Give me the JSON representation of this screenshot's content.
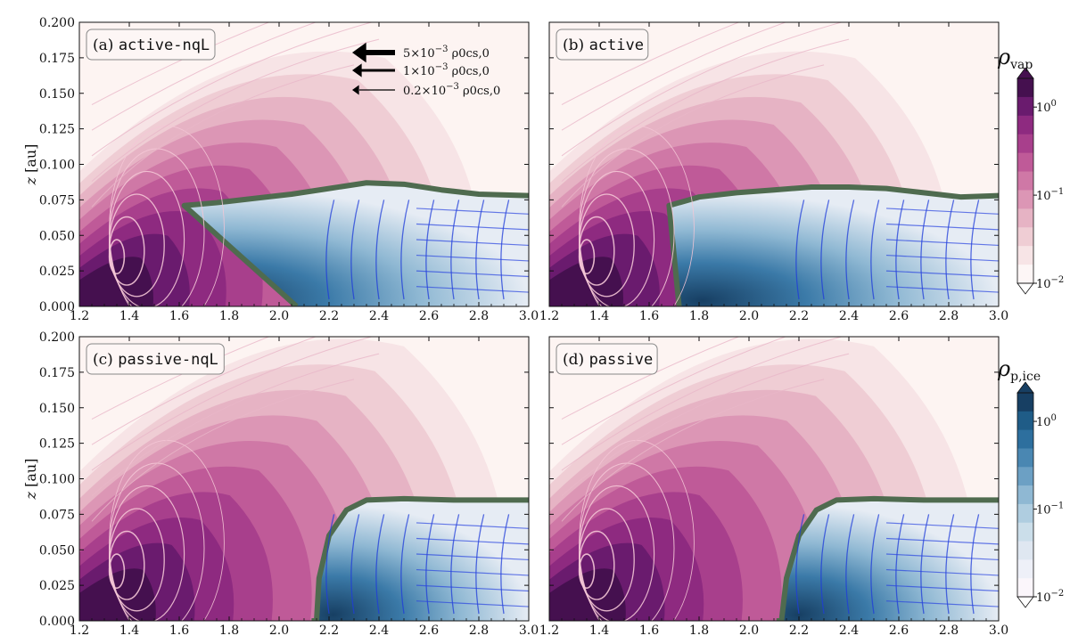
{
  "chart_data": [
    {
      "type": "heatmap",
      "panel": "a",
      "tag_letter": "(a)",
      "tag_name": "active-nqL",
      "xlim": [
        1.2,
        3.0
      ],
      "ylim": [
        0.0,
        0.2
      ],
      "ylabel": "z [au]",
      "xticks": [
        "1.2",
        "1.4",
        "1.6",
        "1.8",
        "2.0",
        "2.2",
        "2.4",
        "2.6",
        "2.8",
        "3.0"
      ],
      "yticks": [
        "0.000",
        "0.025",
        "0.050",
        "0.075",
        "0.100",
        "0.125",
        "0.150",
        "0.175",
        "0.200"
      ],
      "ice_front": [
        [
          1.62,
          0.071
        ],
        [
          1.75,
          0.073
        ],
        [
          1.9,
          0.076
        ],
        [
          2.05,
          0.079
        ],
        [
          2.2,
          0.083
        ],
        [
          2.35,
          0.087
        ],
        [
          2.5,
          0.086
        ],
        [
          2.65,
          0.082
        ],
        [
          2.8,
          0.079
        ],
        [
          3.0,
          0.078
        ]
      ],
      "ice_base_x": 2.07
    },
    {
      "type": "heatmap",
      "panel": "b",
      "tag_letter": "(b)",
      "tag_name": "active",
      "xlim": [
        1.2,
        3.0
      ],
      "ylim": [
        0.0,
        0.2
      ],
      "xticks": [
        "1.2",
        "1.4",
        "1.6",
        "1.8",
        "2.0",
        "2.2",
        "2.4",
        "2.6",
        "2.8",
        "3.0"
      ],
      "ice_front": [
        [
          1.68,
          0.071
        ],
        [
          1.8,
          0.077
        ],
        [
          1.95,
          0.08
        ],
        [
          2.1,
          0.082
        ],
        [
          2.25,
          0.084
        ],
        [
          2.4,
          0.084
        ],
        [
          2.55,
          0.083
        ],
        [
          2.7,
          0.08
        ],
        [
          2.85,
          0.077
        ],
        [
          3.0,
          0.078
        ]
      ],
      "ice_base_x": 1.72
    },
    {
      "type": "heatmap",
      "panel": "c",
      "tag_letter": "(c)",
      "tag_name": "passive-nqL",
      "xlim": [
        1.2,
        3.0
      ],
      "ylim": [
        0.0,
        0.2
      ],
      "ylabel": "z [au]",
      "xticks": [
        "1.2",
        "1.4",
        "1.6",
        "1.8",
        "2.0",
        "2.2",
        "2.4",
        "2.6",
        "2.8",
        "3.0"
      ],
      "yticks": [
        "0.000",
        "0.025",
        "0.050",
        "0.075",
        "0.100",
        "0.125",
        "0.150",
        "0.175",
        "0.200"
      ],
      "ice_front": [
        [
          2.15,
          0.0
        ],
        [
          2.16,
          0.03
        ],
        [
          2.2,
          0.06
        ],
        [
          2.27,
          0.078
        ],
        [
          2.35,
          0.085
        ],
        [
          2.5,
          0.086
        ],
        [
          2.7,
          0.085
        ],
        [
          3.0,
          0.085
        ]
      ],
      "ice_base_x": 2.13
    },
    {
      "type": "heatmap",
      "panel": "d",
      "tag_letter": "(d)",
      "tag_name": "passive",
      "xlim": [
        1.2,
        3.0
      ],
      "ylim": [
        0.0,
        0.2
      ],
      "xticks": [
        "1.2",
        "1.4",
        "1.6",
        "1.8",
        "2.0",
        "2.2",
        "2.4",
        "2.6",
        "2.8",
        "3.0"
      ],
      "ice_front": [
        [
          2.13,
          0.0
        ],
        [
          2.15,
          0.03
        ],
        [
          2.2,
          0.06
        ],
        [
          2.27,
          0.078
        ],
        [
          2.35,
          0.085
        ],
        [
          2.5,
          0.086
        ],
        [
          2.7,
          0.085
        ],
        [
          3.0,
          0.085
        ]
      ],
      "ice_base_x": 2.11
    }
  ],
  "legend": {
    "arrows": [
      {
        "coef": "5",
        "exp": "−3",
        "units": "ρ0cs,0",
        "weight": "thick"
      },
      {
        "coef": "1",
        "exp": "−3",
        "units": "ρ0cs,0",
        "weight": "medium"
      },
      {
        "coef": "0.2",
        "exp": "−3",
        "units": "ρ0cs,0",
        "weight": "thin"
      }
    ]
  },
  "colorbars": [
    {
      "symbol": "ρ",
      "subscript": "vap",
      "ticks": [
        {
          "base": "10",
          "exp": "0"
        },
        {
          "base": "10",
          "exp": "−1"
        },
        {
          "base": "10",
          "exp": "−2"
        }
      ],
      "colors": [
        "#45104f",
        "#6a1b6e",
        "#8e2a80",
        "#a83f8c",
        "#bf5a98",
        "#cf78a6",
        "#dc96b5",
        "#e6b3c4",
        "#efcdd4",
        "#f7e4e6",
        "#fdf6f6"
      ]
    },
    {
      "symbol": "ρ",
      "subscript": "p,ice",
      "ticks": [
        {
          "base": "10",
          "exp": "0"
        },
        {
          "base": "10",
          "exp": "−1"
        },
        {
          "base": "10",
          "exp": "−2"
        }
      ],
      "colors": [
        "#173f63",
        "#1f5c87",
        "#2d6f9e",
        "#4a87b2",
        "#6ca0c4",
        "#8fb8d3",
        "#afcde0",
        "#cbdeea",
        "#dfe7f1",
        "#eef0f8",
        "#fbf6fb"
      ]
    }
  ]
}
